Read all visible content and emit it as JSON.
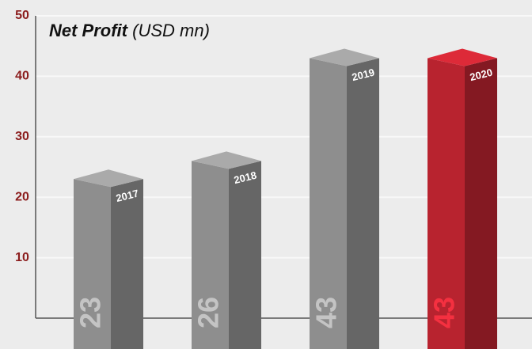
{
  "chart_data": {
    "type": "bar3d",
    "title": "Net Profit",
    "unit": "(USD mn)",
    "categories": [
      "2017",
      "2018",
      "2019",
      "2020"
    ],
    "values": [
      23,
      26,
      43,
      43
    ],
    "colors": [
      "#8e8e8e",
      "#8e8e8e",
      "#8e8e8e",
      "#b8232f"
    ],
    "ylim": [
      0,
      50
    ],
    "yticks": [
      10,
      20,
      30,
      40,
      50
    ],
    "grid": true
  }
}
